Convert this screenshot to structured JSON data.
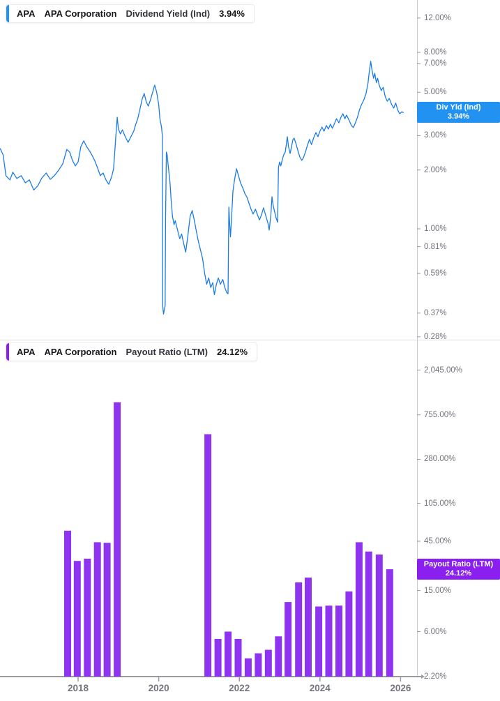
{
  "x_axis": {
    "ticks": [
      {
        "label": "2018",
        "year": 2018
      },
      {
        "label": "2020",
        "year": 2020
      },
      {
        "label": "2022",
        "year": 2022
      },
      {
        "label": "2024",
        "year": 2024
      },
      {
        "label": "2026",
        "year": 2026
      }
    ]
  },
  "chart_data": [
    {
      "type": "line",
      "title": "APA Corporation Dividend Yield (Ind)",
      "header": {
        "ticker": "APA",
        "company": "APA Corporation",
        "metric": "Dividend Yield (Ind)",
        "value": "3.94%"
      },
      "badge": {
        "line1": "Div Yld (Ind)",
        "line2": "3.94%",
        "value": 3.94
      },
      "line_color": "#1b7ce6",
      "accent_color": "#2191f2",
      "y_scale": "log",
      "x_range": [
        2016.05,
        2026.4
      ],
      "y_ticks": [
        {
          "label": "12.00%",
          "value": 12
        },
        {
          "label": "8.00%",
          "value": 8
        },
        {
          "label": "7.00%",
          "value": 7
        },
        {
          "label": "5.00%",
          "value": 5
        },
        {
          "label": "3.00%",
          "value": 3
        },
        {
          "label": "2.00%",
          "value": 2
        },
        {
          "label": "1.00%",
          "value": 1
        },
        {
          "label": "0.81%",
          "value": 0.81
        },
        {
          "label": "0.59%",
          "value": 0.59
        },
        {
          "label": "0.37%",
          "value": 0.37
        },
        {
          "label": "0.28%",
          "value": 0.28
        }
      ],
      "points": [
        [
          2016.07,
          2.57
        ],
        [
          2016.14,
          2.39
        ],
        [
          2016.21,
          1.87
        ],
        [
          2016.31,
          1.78
        ],
        [
          2016.38,
          1.95
        ],
        [
          2016.48,
          1.81
        ],
        [
          2016.59,
          1.87
        ],
        [
          2016.69,
          1.72
        ],
        [
          2016.79,
          1.78
        ],
        [
          2016.9,
          1.58
        ],
        [
          2017.0,
          1.66
        ],
        [
          2017.1,
          1.82
        ],
        [
          2017.21,
          1.93
        ],
        [
          2017.31,
          1.79
        ],
        [
          2017.41,
          1.87
        ],
        [
          2017.52,
          2.0
        ],
        [
          2017.62,
          2.15
        ],
        [
          2017.72,
          2.55
        ],
        [
          2017.79,
          2.47
        ],
        [
          2017.86,
          2.24
        ],
        [
          2017.93,
          2.1
        ],
        [
          2018.0,
          2.2
        ],
        [
          2018.07,
          2.64
        ],
        [
          2018.14,
          2.82
        ],
        [
          2018.21,
          2.64
        ],
        [
          2018.28,
          2.51
        ],
        [
          2018.34,
          2.39
        ],
        [
          2018.41,
          2.24
        ],
        [
          2018.48,
          2.06
        ],
        [
          2018.55,
          1.87
        ],
        [
          2018.62,
          1.93
        ],
        [
          2018.69,
          1.78
        ],
        [
          2018.76,
          1.69
        ],
        [
          2018.83,
          1.84
        ],
        [
          2018.88,
          2.03
        ],
        [
          2018.93,
          2.87
        ],
        [
          2018.97,
          3.72
        ],
        [
          2019.0,
          3.24
        ],
        [
          2019.05,
          3.06
        ],
        [
          2019.1,
          3.21
        ],
        [
          2019.17,
          2.96
        ],
        [
          2019.24,
          2.77
        ],
        [
          2019.31,
          2.96
        ],
        [
          2019.38,
          3.16
        ],
        [
          2019.43,
          3.43
        ],
        [
          2019.48,
          3.66
        ],
        [
          2019.53,
          4.05
        ],
        [
          2019.59,
          4.62
        ],
        [
          2019.64,
          4.93
        ],
        [
          2019.69,
          4.47
        ],
        [
          2019.74,
          4.25
        ],
        [
          2019.79,
          4.54
        ],
        [
          2019.84,
          4.93
        ],
        [
          2019.9,
          5.44
        ],
        [
          2019.95,
          5.0
        ],
        [
          2020.0,
          4.32
        ],
        [
          2020.03,
          3.66
        ],
        [
          2020.07,
          3.32
        ],
        [
          2020.09,
          2.99
        ],
        [
          2020.1,
          0.4
        ],
        [
          2020.12,
          0.366
        ],
        [
          2020.16,
          0.405
        ],
        [
          2020.17,
          1.1
        ],
        [
          2020.19,
          2.47
        ],
        [
          2020.21,
          2.39
        ],
        [
          2020.24,
          2.06
        ],
        [
          2020.28,
          1.72
        ],
        [
          2020.31,
          1.39
        ],
        [
          2020.34,
          1.16
        ],
        [
          2020.38,
          1.05
        ],
        [
          2020.41,
          1.1
        ],
        [
          2020.47,
          0.98
        ],
        [
          2020.52,
          0.89
        ],
        [
          2020.57,
          0.94
        ],
        [
          2020.62,
          0.84
        ],
        [
          2020.67,
          0.76
        ],
        [
          2020.72,
          0.91
        ],
        [
          2020.78,
          1.16
        ],
        [
          2020.83,
          1.24
        ],
        [
          2020.88,
          1.11
        ],
        [
          2020.93,
          0.98
        ],
        [
          2020.98,
          0.87
        ],
        [
          2021.03,
          0.79
        ],
        [
          2021.09,
          0.7
        ],
        [
          2021.14,
          0.59
        ],
        [
          2021.19,
          0.52
        ],
        [
          2021.24,
          0.56
        ],
        [
          2021.29,
          0.5
        ],
        [
          2021.34,
          0.53
        ],
        [
          2021.38,
          0.46
        ],
        [
          2021.43,
          0.52
        ],
        [
          2021.48,
          0.56
        ],
        [
          2021.53,
          0.52
        ],
        [
          2021.59,
          0.55
        ],
        [
          2021.64,
          0.5
        ],
        [
          2021.69,
          0.47
        ],
        [
          2021.72,
          0.465
        ],
        [
          2021.74,
          1.29
        ],
        [
          2021.76,
          1.07
        ],
        [
          2021.78,
          0.91
        ],
        [
          2021.81,
          1.16
        ],
        [
          2021.84,
          1.55
        ],
        [
          2021.88,
          1.78
        ],
        [
          2021.93,
          2.03
        ],
        [
          2021.98,
          1.87
        ],
        [
          2022.03,
          1.72
        ],
        [
          2022.09,
          1.61
        ],
        [
          2022.14,
          1.51
        ],
        [
          2022.19,
          1.45
        ],
        [
          2022.24,
          1.35
        ],
        [
          2022.29,
          1.26
        ],
        [
          2022.34,
          1.19
        ],
        [
          2022.4,
          1.26
        ],
        [
          2022.45,
          1.18
        ],
        [
          2022.5,
          1.11
        ],
        [
          2022.55,
          1.18
        ],
        [
          2022.6,
          1.28
        ],
        [
          2022.66,
          1.16
        ],
        [
          2022.71,
          1.07
        ],
        [
          2022.74,
          0.985
        ],
        [
          2022.78,
          1.16
        ],
        [
          2022.81,
          1.46
        ],
        [
          2022.84,
          1.31
        ],
        [
          2022.88,
          1.21
        ],
        [
          2022.91,
          1.14
        ],
        [
          2022.95,
          1.08
        ],
        [
          2022.97,
          2.06
        ],
        [
          2023.0,
          2.2
        ],
        [
          2023.03,
          2.1
        ],
        [
          2023.07,
          2.27
        ],
        [
          2023.1,
          2.39
        ],
        [
          2023.14,
          2.47
        ],
        [
          2023.19,
          2.96
        ],
        [
          2023.22,
          2.64
        ],
        [
          2023.26,
          2.43
        ],
        [
          2023.29,
          2.6
        ],
        [
          2023.33,
          2.87
        ],
        [
          2023.36,
          2.91
        ],
        [
          2023.4,
          2.75
        ],
        [
          2023.45,
          2.53
        ],
        [
          2023.5,
          2.33
        ],
        [
          2023.55,
          2.24
        ],
        [
          2023.59,
          2.31
        ],
        [
          2023.64,
          2.47
        ],
        [
          2023.69,
          2.68
        ],
        [
          2023.74,
          2.87
        ],
        [
          2023.79,
          2.7
        ],
        [
          2023.84,
          2.91
        ],
        [
          2023.9,
          3.11
        ],
        [
          2023.95,
          2.96
        ],
        [
          2024.0,
          3.16
        ],
        [
          2024.05,
          3.32
        ],
        [
          2024.1,
          3.16
        ],
        [
          2024.16,
          3.38
        ],
        [
          2024.21,
          3.24
        ],
        [
          2024.26,
          3.43
        ],
        [
          2024.31,
          3.27
        ],
        [
          2024.36,
          3.46
        ],
        [
          2024.41,
          3.66
        ],
        [
          2024.47,
          3.49
        ],
        [
          2024.52,
          3.72
        ],
        [
          2024.57,
          3.88
        ],
        [
          2024.62,
          3.66
        ],
        [
          2024.66,
          3.82
        ],
        [
          2024.72,
          3.61
        ],
        [
          2024.78,
          3.38
        ],
        [
          2024.83,
          3.3
        ],
        [
          2024.88,
          3.49
        ],
        [
          2024.93,
          3.72
        ],
        [
          2024.98,
          4.05
        ],
        [
          2025.03,
          4.32
        ],
        [
          2025.09,
          4.58
        ],
        [
          2025.14,
          4.89
        ],
        [
          2025.19,
          5.53
        ],
        [
          2025.22,
          6.26
        ],
        [
          2025.26,
          7.2
        ],
        [
          2025.29,
          6.5
        ],
        [
          2025.33,
          5.9
        ],
        [
          2025.36,
          6.26
        ],
        [
          2025.4,
          5.6
        ],
        [
          2025.43,
          5.9
        ],
        [
          2025.47,
          5.44
        ],
        [
          2025.52,
          5.1
        ],
        [
          2025.57,
          5.3
        ],
        [
          2025.62,
          4.75
        ],
        [
          2025.67,
          4.5
        ],
        [
          2025.72,
          4.65
        ],
        [
          2025.78,
          4.32
        ],
        [
          2025.83,
          4.15
        ],
        [
          2025.88,
          4.4
        ],
        [
          2025.93,
          4.05
        ],
        [
          2025.98,
          3.88
        ],
        [
          2026.03,
          3.97
        ],
        [
          2026.07,
          3.94
        ]
      ]
    },
    {
      "type": "bar",
      "title": "APA Corporation Payout Ratio (LTM)",
      "header": {
        "ticker": "APA",
        "company": "APA Corporation",
        "metric": "Payout Ratio (LTM)",
        "value": "24.12%"
      },
      "badge": {
        "line1": "Payout Ratio (LTM)",
        "line2": "24.12%",
        "value": 24.12
      },
      "bar_color": "#8e33f0",
      "accent_color": "#8a1ff0",
      "y_scale": "log",
      "x_range": [
        2016.05,
        2026.4
      ],
      "y_ticks": [
        {
          "label": "2,045.00%",
          "value": 2045
        },
        {
          "label": "755.00%",
          "value": 755
        },
        {
          "label": "280.00%",
          "value": 280
        },
        {
          "label": "105.00%",
          "value": 105
        },
        {
          "label": "45.00%",
          "value": 45
        },
        {
          "label": "15.00%",
          "value": 15
        },
        {
          "label": "6.00%",
          "value": 6
        },
        {
          "label": "2.20%",
          "value": 2.2
        }
      ],
      "bars": [
        [
          2017.74,
          57
        ],
        [
          2017.98,
          29
        ],
        [
          2018.23,
          30.5
        ],
        [
          2018.48,
          44
        ],
        [
          2018.72,
          43.5
        ],
        [
          2018.97,
          1000
        ],
        [
          2021.22,
          490
        ],
        [
          2021.47,
          5.1
        ],
        [
          2021.72,
          6.0
        ],
        [
          2021.97,
          5.1
        ],
        [
          2022.22,
          3.3
        ],
        [
          2022.47,
          3.7
        ],
        [
          2022.72,
          4.0
        ],
        [
          2022.97,
          5.4
        ],
        [
          2023.21,
          11.6
        ],
        [
          2023.47,
          18
        ],
        [
          2023.71,
          20
        ],
        [
          2023.97,
          10.5
        ],
        [
          2024.22,
          10.7
        ],
        [
          2024.47,
          10.7
        ],
        [
          2024.72,
          14.7
        ],
        [
          2024.97,
          44
        ],
        [
          2025.21,
          35.8
        ],
        [
          2025.47,
          33.5
        ],
        [
          2025.73,
          24.12
        ]
      ]
    }
  ]
}
